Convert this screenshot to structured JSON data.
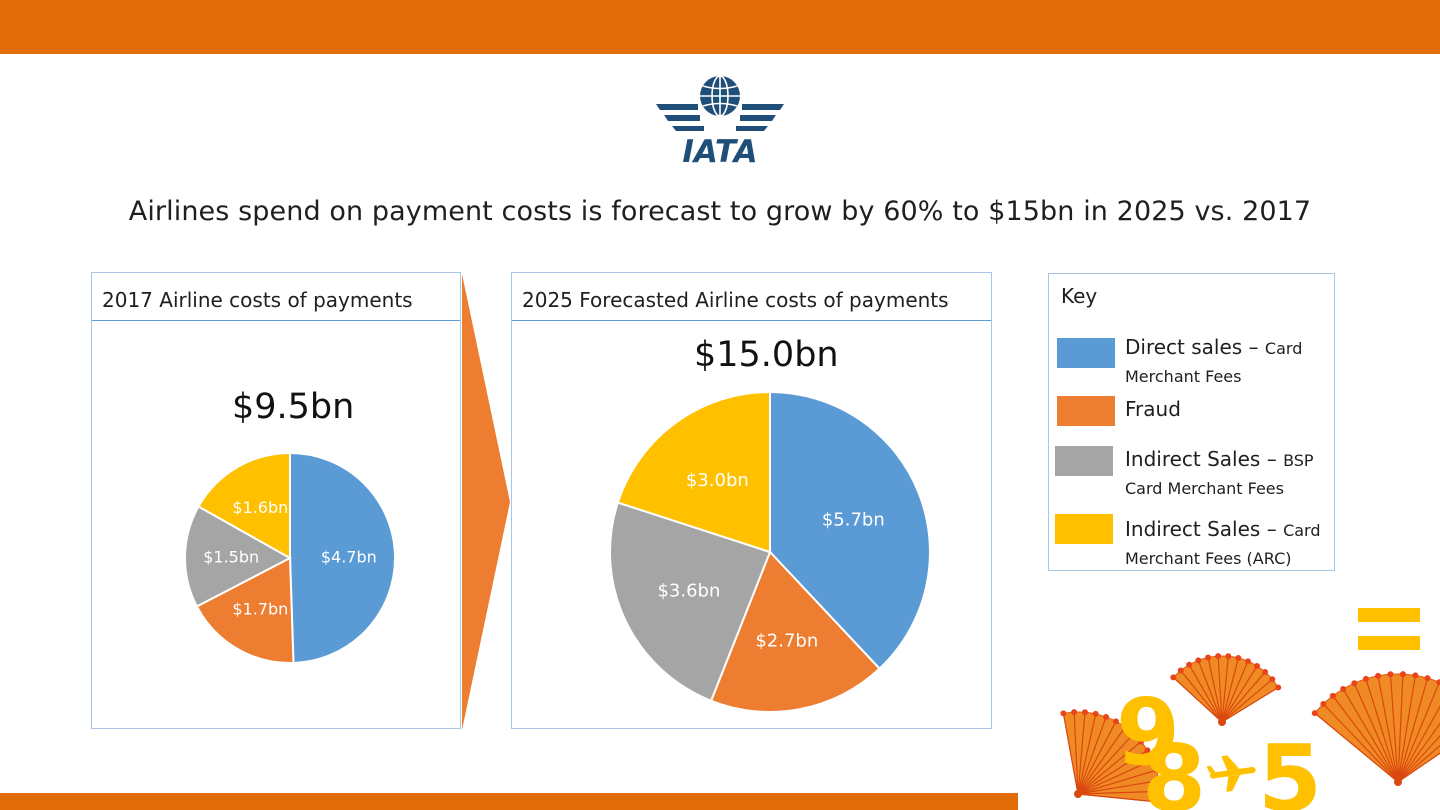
{
  "headline": "Airlines spend on payment costs is forecast to grow by 60% to $15bn in 2025 vs. 2017",
  "logo_text": "IATA",
  "colors": {
    "band": "#e36c0a",
    "direct": "#5b9bd5",
    "fraud": "#ed7d31",
    "indirect_bsp": "#a5a5a5",
    "indirect_arc": "#ffc000",
    "panel_border": "#a8c6e6",
    "logo_blue": "#1f4e79",
    "deco_gold": "#ffc000"
  },
  "key": {
    "title": "Key",
    "items": [
      {
        "line1_main": "Direct sales",
        "line1_sep": " – ",
        "line1_small": "Card",
        "line2": "Merchant Fees",
        "color": "#5b9bd5"
      },
      {
        "line1_main": "Fraud",
        "line1_sep": "",
        "line1_small": "",
        "line2": "",
        "color": "#ed7d31"
      },
      {
        "line1_main": "Indirect Sales",
        "line1_sep": " – ",
        "line1_small": "BSP",
        "line2": "Card Merchant Fees",
        "color": "#a5a5a5"
      },
      {
        "line1_main": "Indirect Sales",
        "line1_sep": " – ",
        "line1_small": "Card",
        "line2": "Merchant Fees (ARC)",
        "color": "#ffc000"
      }
    ]
  },
  "chart_data": [
    {
      "type": "pie",
      "title": "2017 Airline costs of payments",
      "total_label": "$9.5bn",
      "start_angle_deg": 0,
      "slices": [
        {
          "category": "Direct sales – Card Merchant Fees",
          "value": 4.7,
          "label": "$4.7bn",
          "color": "#5b9bd5"
        },
        {
          "category": "Fraud",
          "value": 1.7,
          "label": "$1.7bn",
          "color": "#ed7d31"
        },
        {
          "category": "Indirect Sales – BSP Card Merchant Fees",
          "value": 1.5,
          "label": "$1.5bn",
          "color": "#a5a5a5"
        },
        {
          "category": "Indirect Sales – Card Merchant Fees (ARC)",
          "value": 1.6,
          "label": "$1.6bn",
          "color": "#ffc000"
        }
      ]
    },
    {
      "type": "pie",
      "title": "2025 Forecasted Airline costs of payments",
      "total_label": "$15.0bn",
      "start_angle_deg": 0,
      "slices": [
        {
          "category": "Direct sales – Card Merchant Fees",
          "value": 5.7,
          "label": "$5.7bn",
          "color": "#5b9bd5"
        },
        {
          "category": "Fraud",
          "value": 2.7,
          "label": "$2.7bn",
          "color": "#ed7d31"
        },
        {
          "category": "Indirect Sales – BSP Card Merchant Fees",
          "value": 3.6,
          "label": "$3.6bn",
          "color": "#a5a5a5"
        },
        {
          "category": "Indirect Sales – Card Merchant Fees (ARC)",
          "value": 3.0,
          "label": "$3.0bn",
          "color": "#ffc000"
        }
      ]
    }
  ]
}
